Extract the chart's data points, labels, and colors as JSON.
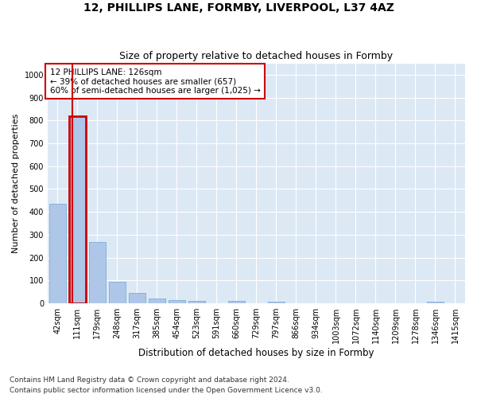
{
  "title": "12, PHILLIPS LANE, FORMBY, LIVERPOOL, L37 4AZ",
  "subtitle": "Size of property relative to detached houses in Formby",
  "xlabel": "Distribution of detached houses by size in Formby",
  "ylabel": "Number of detached properties",
  "categories": [
    "42sqm",
    "111sqm",
    "179sqm",
    "248sqm",
    "317sqm",
    "385sqm",
    "454sqm",
    "523sqm",
    "591sqm",
    "660sqm",
    "729sqm",
    "797sqm",
    "866sqm",
    "934sqm",
    "1003sqm",
    "1072sqm",
    "1140sqm",
    "1209sqm",
    "1278sqm",
    "1346sqm",
    "1415sqm"
  ],
  "values": [
    435,
    820,
    270,
    93,
    45,
    22,
    15,
    10,
    0,
    10,
    0,
    8,
    0,
    0,
    0,
    0,
    0,
    0,
    0,
    8,
    0
  ],
  "bar_color": "#aec6e8",
  "bar_edge_color": "#7bafd4",
  "highlight_bar_index": 1,
  "highlight_bar_edge_color": "#cc0000",
  "annotation_box_text": "12 PHILLIPS LANE: 126sqm\n← 39% of detached houses are smaller (657)\n60% of semi-detached houses are larger (1,025) →",
  "ylim": [
    0,
    1050
  ],
  "yticks": [
    0,
    100,
    200,
    300,
    400,
    500,
    600,
    700,
    800,
    900,
    1000
  ],
  "background_color": "#ffffff",
  "plot_bg_color": "#dde8f5",
  "grid_color": "#ffffff",
  "footer_line1": "Contains HM Land Registry data © Crown copyright and database right 2024.",
  "footer_line2": "Contains public sector information licensed under the Open Government Licence v3.0.",
  "title_fontsize": 10,
  "subtitle_fontsize": 9,
  "xlabel_fontsize": 8.5,
  "ylabel_fontsize": 8,
  "tick_fontsize": 7,
  "annotation_fontsize": 7.5,
  "footer_fontsize": 6.5
}
